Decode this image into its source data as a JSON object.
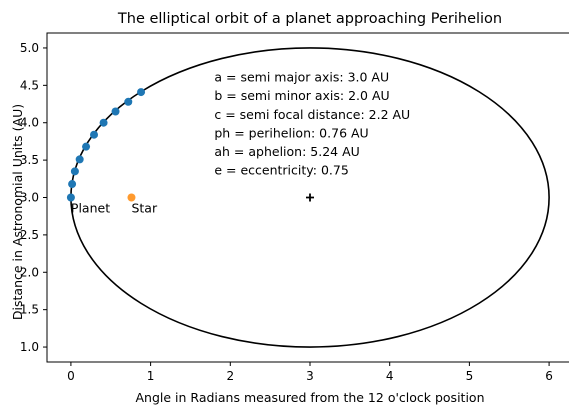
{
  "chart_data": {
    "type": "scatter",
    "title": "The elliptical orbit of a planet approaching Perihelion",
    "xlabel": "Angle in Radians measured from the 12 o'clock position",
    "ylabel": "Distance in Astronomial Units (AU)",
    "xlim": [
      -0.3,
      6.3
    ],
    "ylim": [
      0.8,
      5.2
    ],
    "xticks": [
      0,
      1,
      2,
      3,
      4,
      5,
      6
    ],
    "yticks": [
      1.0,
      1.5,
      2.0,
      2.5,
      3.0,
      3.5,
      4.0,
      4.5,
      5.0
    ],
    "grid": false,
    "ellipse": {
      "center": [
        3.0,
        3.0
      ],
      "semi_major": 3.0,
      "semi_minor": 2.0,
      "color": "#000000"
    },
    "planet_points": {
      "color": "#1f77b4",
      "x": [
        0.0,
        0.015,
        0.05,
        0.11,
        0.19,
        0.29,
        0.41,
        0.56,
        0.72,
        0.88
      ],
      "y": [
        3.0,
        3.18,
        3.35,
        3.51,
        3.68,
        3.84,
        4.0,
        4.15,
        4.28,
        4.41
      ]
    },
    "star": {
      "x": 0.76,
      "y": 3.0,
      "color": "#ff9a2e"
    },
    "center_marker": {
      "x": 3.0,
      "y": 3.0
    },
    "labels": [
      {
        "text": "Planet",
        "x": 0.0,
        "y": 2.85
      },
      {
        "text": "Star",
        "x": 0.76,
        "y": 2.85
      }
    ],
    "info_lines": [
      "a   = semi major axis: 3.0 AU",
      "b   = semi minor axis: 2.0 AU",
      "c   = semi focal distance: 2.2 AU",
      "ph = perihelion: 0.76 AU",
      "ah = aphelion: 5.24 AU",
      "e   = eccentricity: 0.75"
    ],
    "info_anchor": {
      "x": 1.8,
      "y": 4.55
    }
  }
}
